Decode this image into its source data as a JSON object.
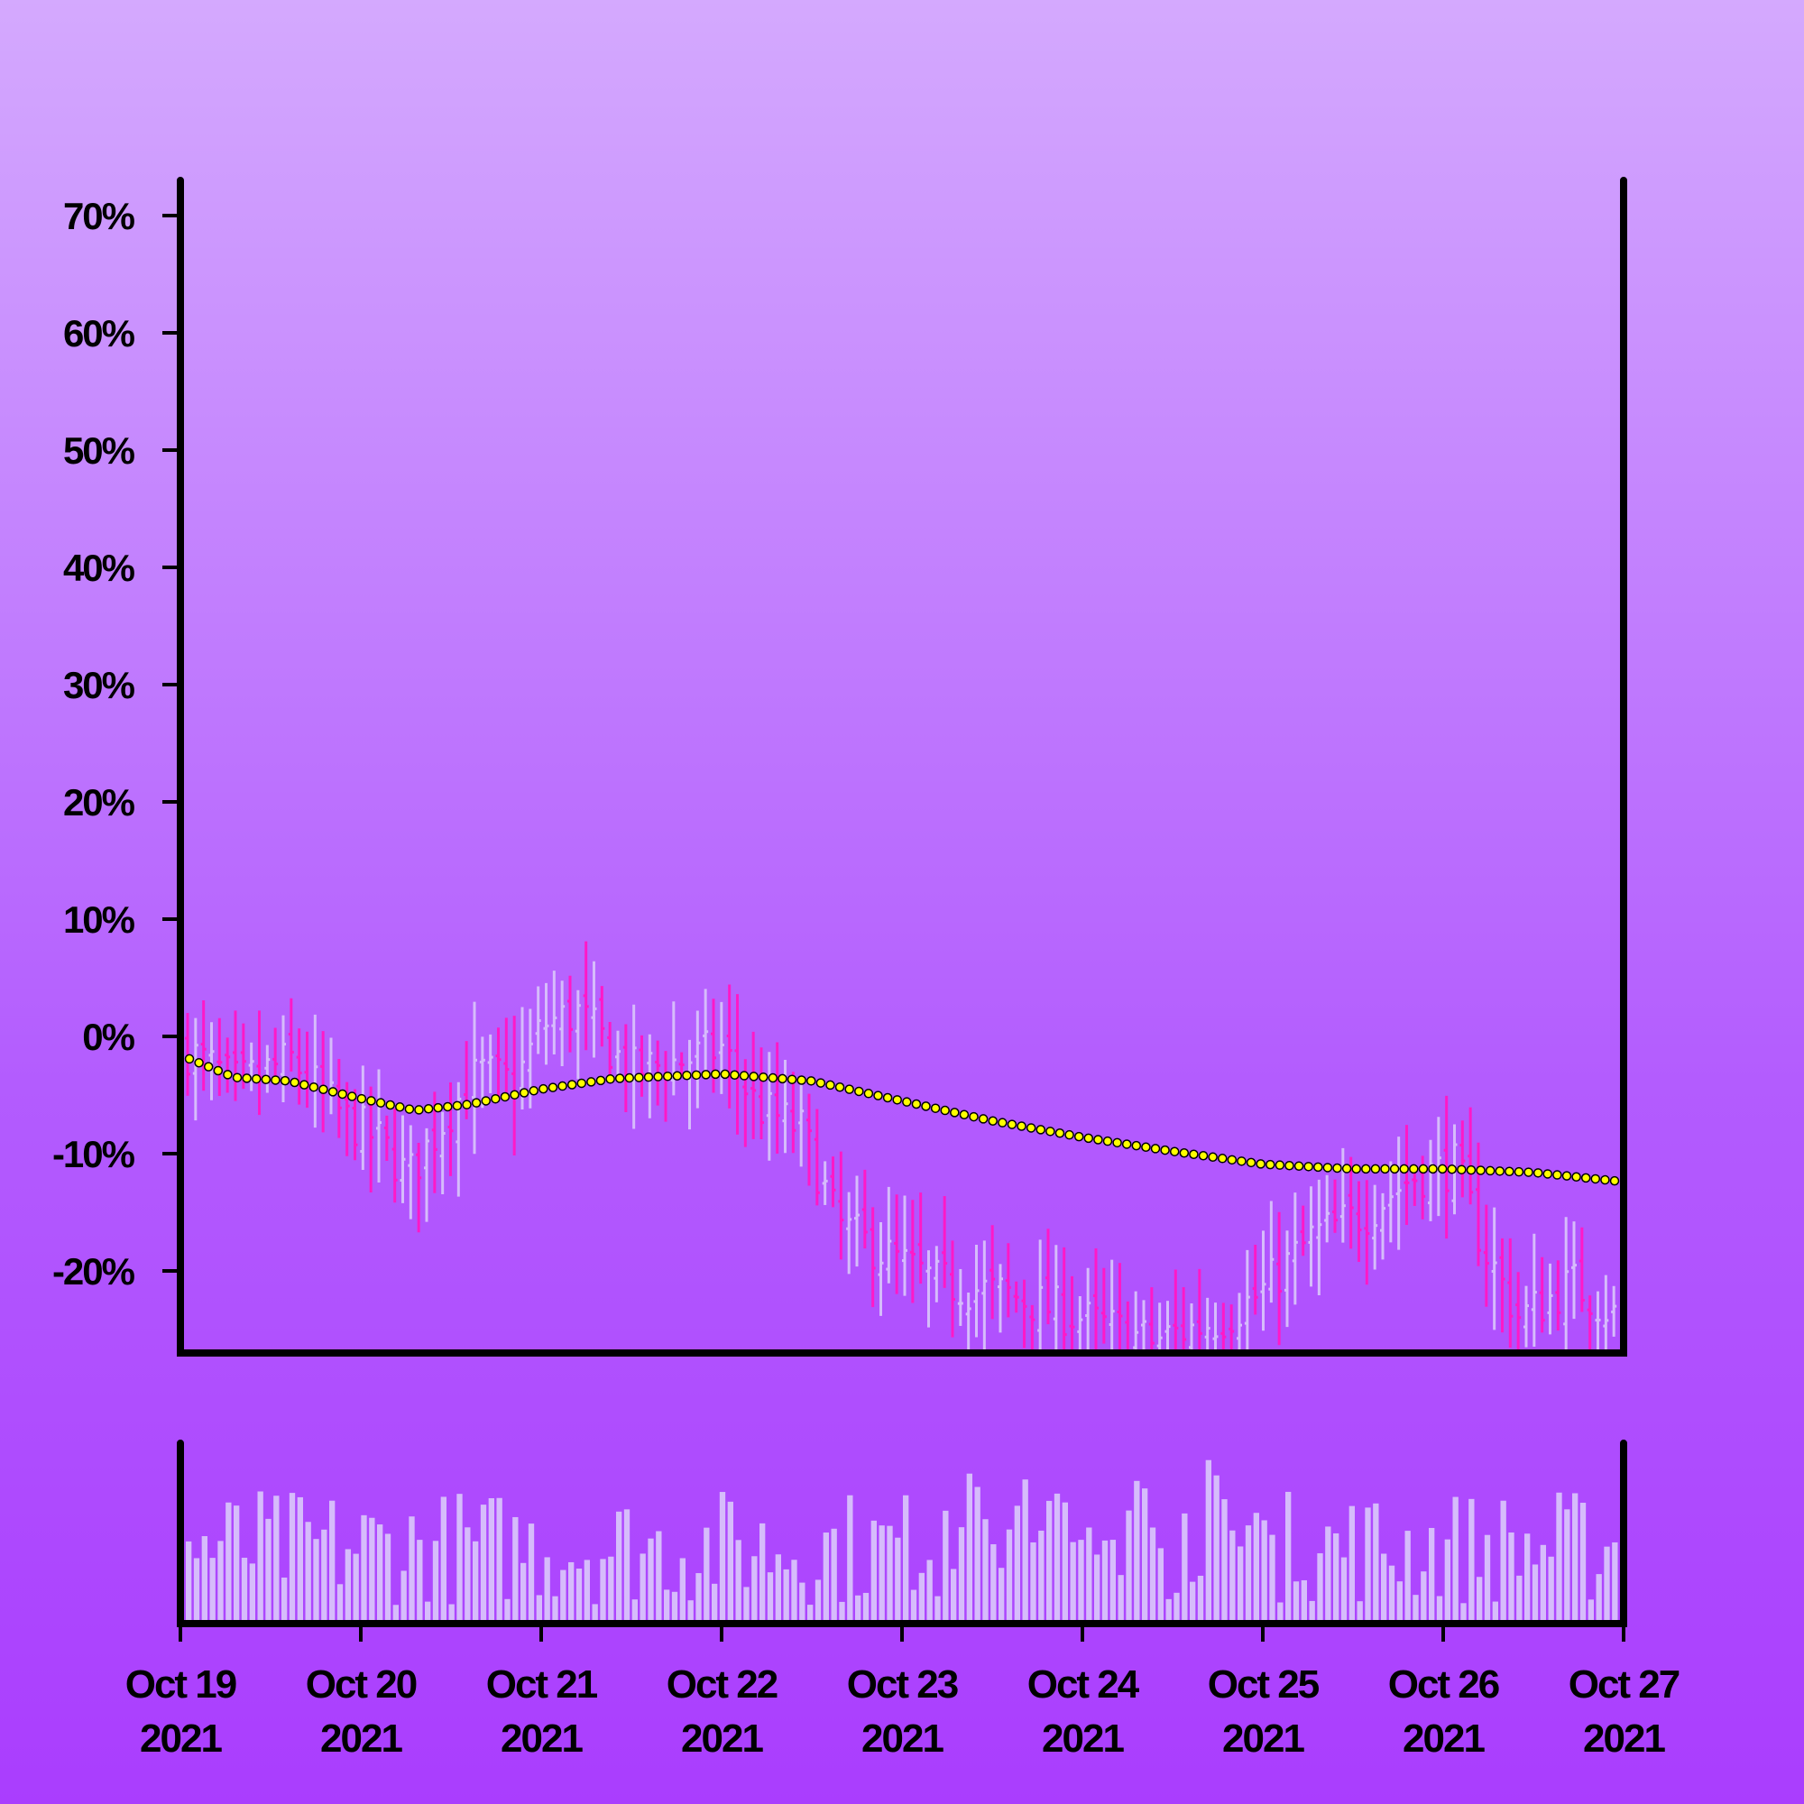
{
  "chart_data": {
    "type": "ohlc",
    "x_ticks": [
      {
        "date": "Oct 19 2021",
        "line1": "Oct 19",
        "line2": "2021"
      },
      {
        "date": "Oct 20 2021",
        "line1": "Oct 20",
        "line2": "2021"
      },
      {
        "date": "Oct 21 2021",
        "line1": "Oct 21",
        "line2": "2021"
      },
      {
        "date": "Oct 22 2021",
        "line1": "Oct 22",
        "line2": "2021"
      },
      {
        "date": "Oct 23 2021",
        "line1": "Oct 23",
        "line2": "2021"
      },
      {
        "date": "Oct 24 2021",
        "line1": "Oct 24",
        "line2": "2021"
      },
      {
        "date": "Oct 25 2021",
        "line1": "Oct 25",
        "line2": "2021"
      },
      {
        "date": "Oct 26 2021",
        "line1": "Oct 26",
        "line2": "2021"
      },
      {
        "date": "Oct 27 2021",
        "line1": "Oct 27",
        "line2": "2021"
      }
    ],
    "y_ticks": [
      {
        "value": 70,
        "label": "70%"
      },
      {
        "value": 60,
        "label": "60%"
      },
      {
        "value": 50,
        "label": "50%"
      },
      {
        "value": 40,
        "label": "40%"
      },
      {
        "value": 30,
        "label": "30%"
      },
      {
        "value": 20,
        "label": "20%"
      },
      {
        "value": 10,
        "label": "10%"
      },
      {
        "value": 0,
        "label": "0%"
      },
      {
        "value": -10,
        "label": "-10%"
      },
      {
        "value": -20,
        "label": "-20%"
      }
    ],
    "ylim": [
      -27,
      73
    ],
    "xlim": [
      "Oct 19 2021",
      "Oct 27 2021"
    ],
    "grid": false,
    "price_close_anchors": [
      {
        "day": 0.0,
        "value": -1
      },
      {
        "day": 0.3,
        "value": -4
      },
      {
        "day": 0.6,
        "value": -2
      },
      {
        "day": 0.9,
        "value": -7
      },
      {
        "day": 1.1,
        "value": -9
      },
      {
        "day": 1.25,
        "value": -12
      },
      {
        "day": 1.5,
        "value": -6
      },
      {
        "day": 1.65,
        "value": -3
      },
      {
        "day": 1.85,
        "value": -4
      },
      {
        "day": 2.0,
        "value": 1
      },
      {
        "day": 2.2,
        "value": 2
      },
      {
        "day": 2.5,
        "value": -3
      },
      {
        "day": 2.8,
        "value": -2
      },
      {
        "day": 3.0,
        "value": -1
      },
      {
        "day": 3.2,
        "value": -6
      },
      {
        "day": 3.45,
        "value": -8
      },
      {
        "day": 3.65,
        "value": -16
      },
      {
        "day": 3.85,
        "value": -18
      },
      {
        "day": 4.2,
        "value": -21
      },
      {
        "day": 4.6,
        "value": -22
      },
      {
        "day": 5.0,
        "value": -24
      },
      {
        "day": 5.4,
        "value": -26
      },
      {
        "day": 5.8,
        "value": -24
      },
      {
        "day": 6.0,
        "value": -22
      },
      {
        "day": 6.3,
        "value": -17
      },
      {
        "day": 6.6,
        "value": -15
      },
      {
        "day": 6.85,
        "value": -12
      },
      {
        "day": 7.1,
        "value": -11
      },
      {
        "day": 7.25,
        "value": -18
      },
      {
        "day": 7.45,
        "value": -24
      },
      {
        "day": 7.75,
        "value": -21
      },
      {
        "day": 8.0,
        "value": -24
      }
    ],
    "moving_average_anchors": [
      {
        "day": 0.0,
        "value": -1.6
      },
      {
        "day": 0.3,
        "value": -3.5
      },
      {
        "day": 0.6,
        "value": -3.8
      },
      {
        "day": 1.0,
        "value": -5.3
      },
      {
        "day": 1.3,
        "value": -6.3
      },
      {
        "day": 1.6,
        "value": -5.8
      },
      {
        "day": 2.0,
        "value": -4.5
      },
      {
        "day": 2.4,
        "value": -3.6
      },
      {
        "day": 3.0,
        "value": -3.2
      },
      {
        "day": 3.5,
        "value": -3.8
      },
      {
        "day": 4.0,
        "value": -5.5
      },
      {
        "day": 4.5,
        "value": -7.2
      },
      {
        "day": 5.0,
        "value": -8.6
      },
      {
        "day": 5.5,
        "value": -9.8
      },
      {
        "day": 6.0,
        "value": -10.9
      },
      {
        "day": 6.5,
        "value": -11.3
      },
      {
        "day": 7.0,
        "value": -11.3
      },
      {
        "day": 7.5,
        "value": -11.6
      },
      {
        "day": 8.0,
        "value": -12.4
      }
    ],
    "colors": {
      "up": "#d6bcfb",
      "down": "#ff19c8",
      "volume": "#d6bcfb",
      "moving_average_fill": "#ffff00",
      "moving_average_stroke": "#000000",
      "axis": "#000000"
    }
  }
}
